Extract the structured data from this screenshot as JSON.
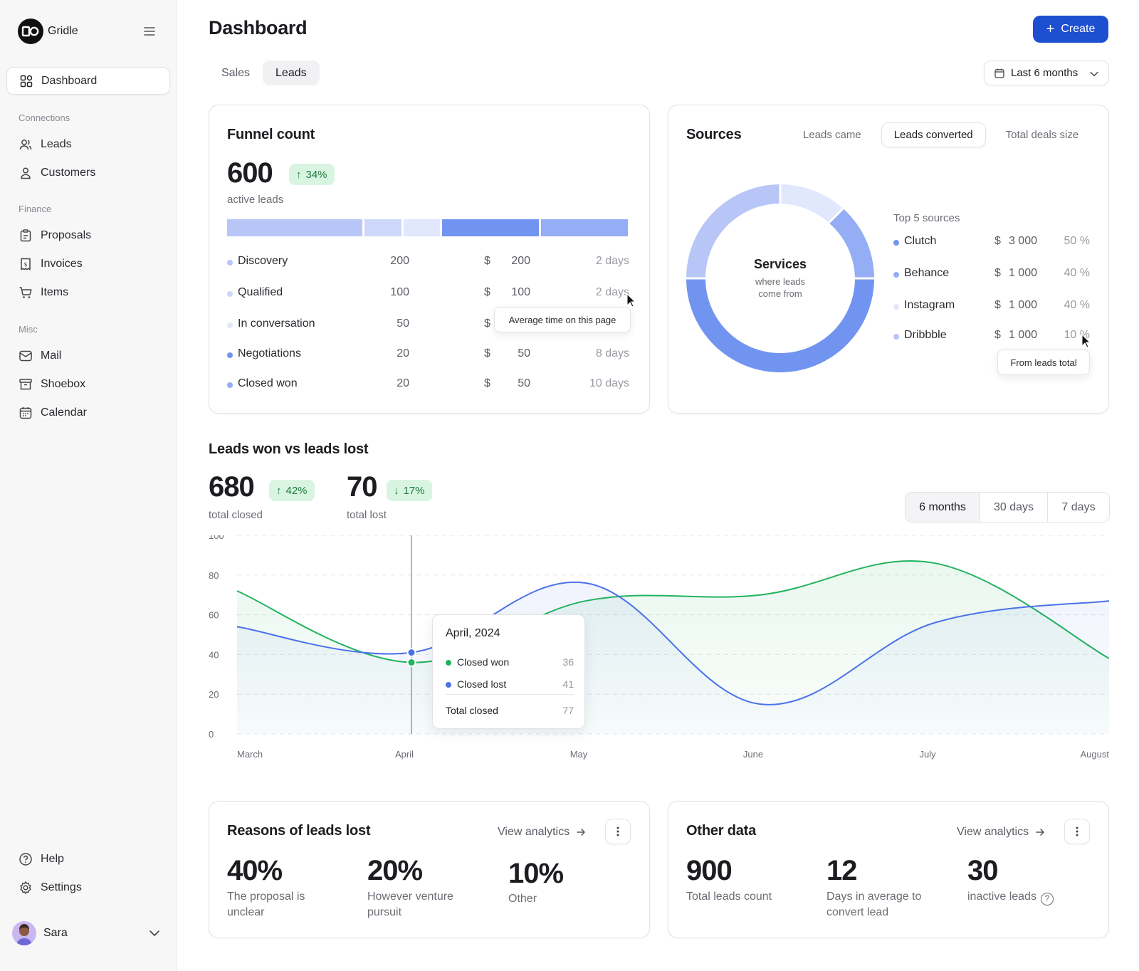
{
  "app": {
    "name": "Gridle"
  },
  "sidebar": {
    "active": "Dashboard",
    "sections": [
      {
        "title": "Connections",
        "items": [
          "Leads",
          "Customers"
        ]
      },
      {
        "title": "Finance",
        "items": [
          "Proposals",
          "Invoices",
          "Items"
        ]
      },
      {
        "title": "Misc",
        "items": [
          "Mail",
          "Shoebox",
          "Calendar"
        ]
      }
    ],
    "bottom": [
      "Help",
      "Settings"
    ],
    "user": {
      "name": "Sara"
    }
  },
  "header": {
    "title": "Dashboard",
    "create_label": "Create",
    "tabs": [
      {
        "label": "Sales",
        "active": false
      },
      {
        "label": "Leads",
        "active": true
      }
    ],
    "range": "Last 6 months"
  },
  "funnel": {
    "title": "Funnel count",
    "total": "600",
    "change": "34%",
    "change_direction": "up",
    "total_label": "active leads",
    "stages": [
      {
        "name": "Discovery",
        "count": "200",
        "currency": "$",
        "amount": "200",
        "time": "2 days",
        "color": "#b8c6f7"
      },
      {
        "name": "Qualified",
        "count": "100",
        "currency": "$",
        "amount": "100",
        "time": "2 days",
        "color": "#cdd7fa"
      },
      {
        "name": "In conversation",
        "count": "50",
        "currency": "$",
        "amount": "",
        "time": "",
        "color": "#e1e7fc"
      },
      {
        "name": "Negotiations",
        "count": "20",
        "currency": "$",
        "amount": "50",
        "time": "8 days",
        "color": "#7294f1"
      },
      {
        "name": "Closed won",
        "count": "20",
        "currency": "$",
        "amount": "50",
        "time": "10 days",
        "color": "#94adf4"
      }
    ],
    "tooltip": "Average time on this page"
  },
  "sources": {
    "title": "Sources",
    "tabs": [
      {
        "label": "Leads came",
        "active": false
      },
      {
        "label": "Leads converted",
        "active": true
      },
      {
        "label": "Total deals size",
        "active": false
      }
    ],
    "donut_title": "Services",
    "donut_subtitle": "where leads come from",
    "top_label": "Top 5 sources",
    "items": [
      {
        "name": "Clutch",
        "currency": "$",
        "amount": "3 000",
        "pct": "50 %",
        "color": "#7294f1"
      },
      {
        "name": "Behance",
        "currency": "$",
        "amount": "1 000",
        "pct": "40 %",
        "color": "#94adf4"
      },
      {
        "name": "Instagram",
        "currency": "$",
        "amount": "1 000",
        "pct": "40 %",
        "color": "#e1e7fc"
      },
      {
        "name": "Dribbble",
        "currency": "$",
        "amount": "1 000",
        "pct": "10 %",
        "color": "#b8c6f7"
      }
    ],
    "tooltip": "From leads total"
  },
  "leads_chart": {
    "title": "Leads won vs leads lost",
    "won": {
      "value": "680",
      "change": "42%",
      "direction": "up",
      "label": "total closed"
    },
    "lost": {
      "value": "70",
      "change": "17%",
      "direction": "down",
      "label": "total lost"
    },
    "ranges": [
      {
        "label": "6 months",
        "active": true
      },
      {
        "label": "30 days",
        "active": false
      },
      {
        "label": "7 days",
        "active": false
      }
    ],
    "tooltip": {
      "title": "April, 2024",
      "rows": [
        {
          "name": "Closed won",
          "value": "36",
          "color": "#22b35e"
        },
        {
          "name": "Closed lost",
          "value": "41",
          "color": "#4a72e8"
        }
      ],
      "total_label": "Total closed",
      "total_value": "77"
    }
  },
  "chart_data": {
    "type": "line",
    "x": [
      "March",
      "April",
      "May",
      "June",
      "July",
      "August"
    ],
    "ylim": [
      0,
      100
    ],
    "yticks": [
      "100",
      "80",
      "60",
      "40",
      "20",
      "0"
    ],
    "series": [
      {
        "name": "Closed won",
        "color": "#22b35e",
        "values": [
          72,
          36,
          67,
          70,
          86,
          38
        ]
      },
      {
        "name": "Closed lost",
        "color": "#4a72e8",
        "values": [
          54,
          41,
          76,
          15,
          56,
          67
        ]
      }
    ]
  },
  "reasons": {
    "title": "Reasons of leads lost",
    "view_label": "View analytics",
    "stats": [
      {
        "value": "40%",
        "label": "The proposal is unclear"
      },
      {
        "value": "20%",
        "label": "However venture pursuit"
      },
      {
        "value": "10%",
        "label": "Other"
      }
    ]
  },
  "other": {
    "title": "Other data",
    "view_label": "View analytics",
    "stats": [
      {
        "value": "900",
        "label": "Total leads count"
      },
      {
        "value": "12",
        "label": "Days in average to convert lead"
      },
      {
        "value": "30",
        "label": "inactive leads"
      }
    ]
  }
}
